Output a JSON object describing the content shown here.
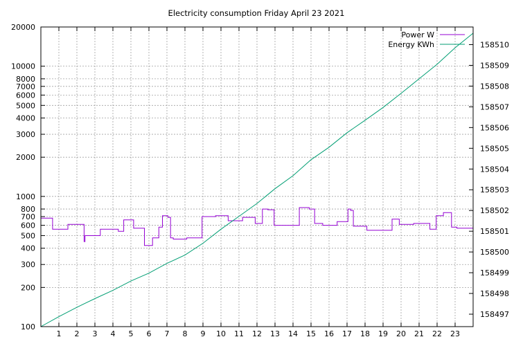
{
  "chart_data": {
    "type": "line",
    "title": "Electricity consumption Friday April 23 2021",
    "x": {
      "range": [
        0,
        24
      ],
      "ticks": [
        1,
        2,
        3,
        4,
        5,
        6,
        7,
        8,
        9,
        10,
        11,
        12,
        13,
        14,
        15,
        16,
        17,
        18,
        19,
        20,
        21,
        22,
        23
      ],
      "tick_labels": [
        "1",
        "2",
        "3",
        "4",
        "5",
        "6",
        "7",
        "8",
        "9",
        "10",
        "11",
        "12",
        "13",
        "14",
        "15",
        "16",
        "17",
        "18",
        "19",
        "20",
        "21",
        "22",
        "23"
      ]
    },
    "y_left": {
      "scale": "log",
      "range": [
        100,
        20000
      ],
      "ticks": [
        100,
        200,
        300,
        400,
        500,
        600,
        700,
        800,
        1000,
        2000,
        3000,
        4000,
        5000,
        6000,
        7000,
        8000,
        10000,
        20000
      ],
      "tick_labels": [
        "100",
        "200",
        "300",
        "400",
        "500",
        "600",
        "700",
        "800",
        "1000",
        "2000",
        "3000",
        "4000",
        "5000",
        "6000",
        "7000",
        "8000",
        "10000",
        "20000"
      ]
    },
    "y_right": {
      "scale": "linear",
      "range": [
        158496.4,
        158510.85
      ],
      "ticks": [
        158497,
        158498,
        158499,
        158500,
        158501,
        158502,
        158503,
        158504,
        158505,
        158506,
        158507,
        158508,
        158509,
        158510
      ],
      "tick_labels": [
        "158497",
        "158498",
        "158499",
        "158500",
        "158501",
        "158502",
        "158503",
        "158504",
        "158505",
        "158506",
        "158507",
        "158508",
        "158509",
        "158510"
      ]
    },
    "grid": true,
    "legend_position": "top-right",
    "series": [
      {
        "name": "Power W",
        "axis": "left",
        "color": "#9400d3",
        "step": true,
        "points": [
          [
            0,
            680
          ],
          [
            0.65,
            560
          ],
          [
            1.5,
            610
          ],
          [
            2.35,
            610
          ],
          [
            2.4,
            450
          ],
          [
            2.45,
            500
          ],
          [
            3.3,
            560
          ],
          [
            4.3,
            540
          ],
          [
            4.6,
            660
          ],
          [
            5.15,
            570
          ],
          [
            5.75,
            420
          ],
          [
            6.2,
            480
          ],
          [
            6.55,
            580
          ],
          [
            6.75,
            710
          ],
          [
            7.05,
            690
          ],
          [
            7.2,
            480
          ],
          [
            7.35,
            470
          ],
          [
            8.1,
            480
          ],
          [
            8.95,
            700
          ],
          [
            9.7,
            710
          ],
          [
            10.4,
            650
          ],
          [
            11.2,
            690
          ],
          [
            11.9,
            620
          ],
          [
            12.3,
            800
          ],
          [
            12.6,
            790
          ],
          [
            12.95,
            600
          ],
          [
            14.35,
            820
          ],
          [
            14.9,
            800
          ],
          [
            15.2,
            620
          ],
          [
            15.65,
            600
          ],
          [
            16.45,
            640
          ],
          [
            17.05,
            800
          ],
          [
            17.2,
            780
          ],
          [
            17.35,
            590
          ],
          [
            18.1,
            550
          ],
          [
            19.5,
            670
          ],
          [
            19.9,
            610
          ],
          [
            20.7,
            620
          ],
          [
            21.6,
            560
          ],
          [
            21.95,
            710
          ],
          [
            22.35,
            750
          ],
          [
            22.8,
            580
          ],
          [
            23.1,
            570
          ],
          [
            24,
            600
          ]
        ]
      },
      {
        "name": "Energy KWh",
        "axis": "right",
        "color": "#009e73",
        "step": false,
        "points": [
          [
            0,
            158496.4
          ],
          [
            1,
            158496.88
          ],
          [
            2,
            158497.33
          ],
          [
            3,
            158497.75
          ],
          [
            4,
            158498.15
          ],
          [
            5,
            158498.6
          ],
          [
            6,
            158498.98
          ],
          [
            7,
            158499.45
          ],
          [
            8,
            158499.85
          ],
          [
            9,
            158500.42
          ],
          [
            10,
            158501.1
          ],
          [
            11,
            158501.72
          ],
          [
            12,
            158502.34
          ],
          [
            13,
            158503.05
          ],
          [
            14,
            158503.68
          ],
          [
            15,
            158504.45
          ],
          [
            16,
            158505.05
          ],
          [
            17,
            158505.75
          ],
          [
            18,
            158506.35
          ],
          [
            19,
            158506.97
          ],
          [
            20,
            158507.65
          ],
          [
            21,
            158508.35
          ],
          [
            22,
            158509.05
          ],
          [
            23,
            158509.85
          ],
          [
            24,
            158510.55
          ]
        ]
      }
    ]
  }
}
